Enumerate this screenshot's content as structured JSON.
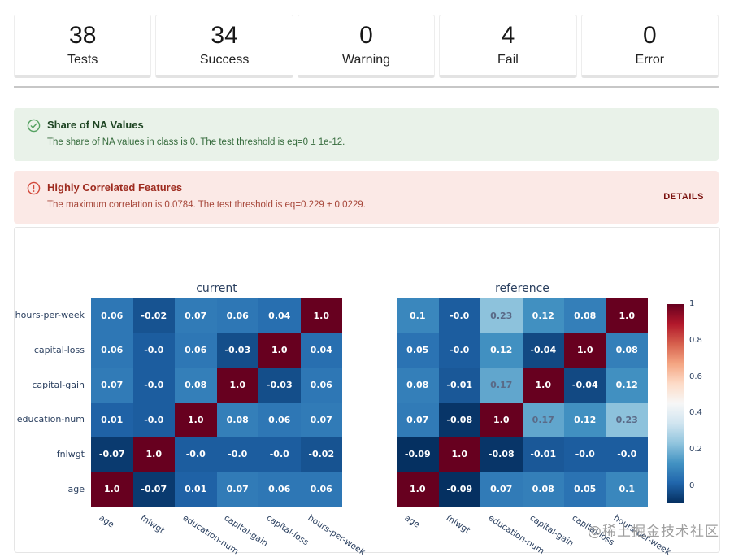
{
  "summary_cards": [
    {
      "value": "38",
      "label": "Tests"
    },
    {
      "value": "34",
      "label": "Success"
    },
    {
      "value": "0",
      "label": "Warning"
    },
    {
      "value": "4",
      "label": "Fail"
    },
    {
      "value": "0",
      "label": "Error"
    }
  ],
  "alerts": [
    {
      "status": "success",
      "icon": "check-circle-icon",
      "title": "Share of NA Values",
      "description": "The share of NA values in class is 0. The test threshold is eq=0 ± 1e-12."
    },
    {
      "status": "fail",
      "icon": "exclamation-circle-icon",
      "title": "Highly Correlated Features",
      "description": "The maximum correlation is 0.0784. The test threshold is eq=0.229 ± 0.0229.",
      "action_label": "DETAILS"
    }
  ],
  "chart_data": {
    "type": "heatmap",
    "x_labels": [
      "age",
      "fnlwgt",
      "education-num",
      "capital-gain",
      "capital-loss",
      "hours-per-week"
    ],
    "y_labels": [
      "hours-per-week",
      "capital-loss",
      "capital-gain",
      "education-num",
      "fnlwgt",
      "age"
    ],
    "panels": [
      {
        "title": "current",
        "values": [
          [
            "0.06",
            "-0.02",
            "0.07",
            "0.06",
            "0.04",
            "1.0"
          ],
          [
            "0.06",
            "-0.0",
            "0.06",
            "-0.03",
            "1.0",
            "0.04"
          ],
          [
            "0.07",
            "-0.0",
            "0.08",
            "1.0",
            "-0.03",
            "0.06"
          ],
          [
            "0.01",
            "-0.0",
            "1.0",
            "0.08",
            "0.06",
            "0.07"
          ],
          [
            "-0.07",
            "1.0",
            "-0.0",
            "-0.0",
            "-0.0",
            "-0.02"
          ],
          [
            "1.0",
            "-0.07",
            "0.01",
            "0.07",
            "0.06",
            "0.06"
          ]
        ]
      },
      {
        "title": "reference",
        "values": [
          [
            "0.1",
            "-0.0",
            "0.23",
            "0.12",
            "0.08",
            "1.0"
          ],
          [
            "0.05",
            "-0.0",
            "0.12",
            "-0.04",
            "1.0",
            "0.08"
          ],
          [
            "0.08",
            "-0.01",
            "0.17",
            "1.0",
            "-0.04",
            "0.12"
          ],
          [
            "0.07",
            "-0.08",
            "1.0",
            "0.17",
            "0.12",
            "0.23"
          ],
          [
            "-0.09",
            "1.0",
            "-0.08",
            "-0.01",
            "-0.0",
            "-0.0"
          ],
          [
            "1.0",
            "-0.09",
            "0.07",
            "0.08",
            "0.05",
            "0.1"
          ]
        ]
      }
    ],
    "colorscale": "RdBu_r",
    "zmin": -0.09,
    "zmax": 1.0,
    "colorbar_ticks": [
      {
        "label": "1",
        "value": 1
      },
      {
        "label": "0.8",
        "value": 0.8
      },
      {
        "label": "0.6",
        "value": 0.6
      },
      {
        "label": "0.4",
        "value": 0.4
      },
      {
        "label": "0.2",
        "value": 0.2
      },
      {
        "label": "0",
        "value": 0
      }
    ]
  },
  "watermark": "@稀土掘金技术社区",
  "colors": {
    "success_bg": "#e9f2e9",
    "success_text": "#1e4523",
    "success_icon": "#56a262",
    "fail_bg": "#fbe9e6",
    "fail_text": "#9e2b1f",
    "fail_icon": "#d2493b",
    "details_text": "#7a100d",
    "axis_text": "#2a3f5f"
  }
}
